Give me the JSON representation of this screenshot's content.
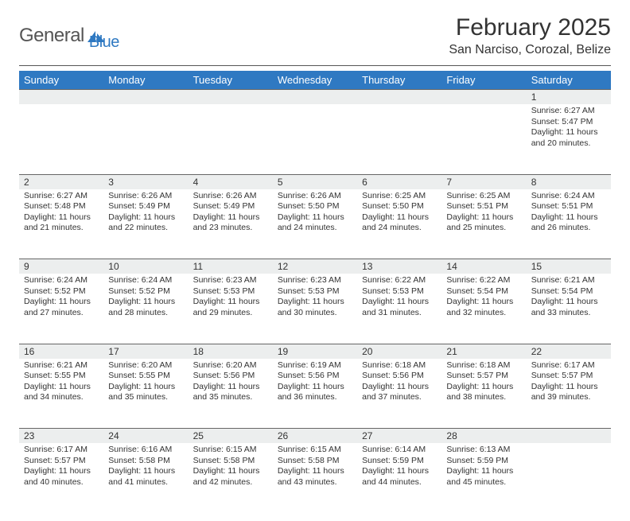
{
  "brand": {
    "text1": "General",
    "text2": "Blue"
  },
  "title": "February 2025",
  "location": "San Narciso, Corozal, Belize",
  "colors": {
    "header_bg": "#2f79c2",
    "header_fg": "#ffffff",
    "daynum_bg": "#eceeee",
    "rule": "#555555",
    "text": "#333333",
    "brand_blue": "#2f79c2",
    "brand_gray": "#555555",
    "background": "#ffffff",
    "cell_border": "#666666"
  },
  "typography": {
    "month_title_pt": 30,
    "location_pt": 16,
    "weekday_pt": 13,
    "daynum_pt": 12,
    "body_pt": 10.5
  },
  "weekdays": [
    "Sunday",
    "Monday",
    "Tuesday",
    "Wednesday",
    "Thursday",
    "Friday",
    "Saturday"
  ],
  "weeks": [
    [
      null,
      null,
      null,
      null,
      null,
      null,
      {
        "n": "1",
        "sunrise": "6:27 AM",
        "sunset": "5:47 PM",
        "dl_h": "11",
        "dl_m": "20"
      }
    ],
    [
      {
        "n": "2",
        "sunrise": "6:27 AM",
        "sunset": "5:48 PM",
        "dl_h": "11",
        "dl_m": "21"
      },
      {
        "n": "3",
        "sunrise": "6:26 AM",
        "sunset": "5:49 PM",
        "dl_h": "11",
        "dl_m": "22"
      },
      {
        "n": "4",
        "sunrise": "6:26 AM",
        "sunset": "5:49 PM",
        "dl_h": "11",
        "dl_m": "23"
      },
      {
        "n": "5",
        "sunrise": "6:26 AM",
        "sunset": "5:50 PM",
        "dl_h": "11",
        "dl_m": "24"
      },
      {
        "n": "6",
        "sunrise": "6:25 AM",
        "sunset": "5:50 PM",
        "dl_h": "11",
        "dl_m": "24"
      },
      {
        "n": "7",
        "sunrise": "6:25 AM",
        "sunset": "5:51 PM",
        "dl_h": "11",
        "dl_m": "25"
      },
      {
        "n": "8",
        "sunrise": "6:24 AM",
        "sunset": "5:51 PM",
        "dl_h": "11",
        "dl_m": "26"
      }
    ],
    [
      {
        "n": "9",
        "sunrise": "6:24 AM",
        "sunset": "5:52 PM",
        "dl_h": "11",
        "dl_m": "27"
      },
      {
        "n": "10",
        "sunrise": "6:24 AM",
        "sunset": "5:52 PM",
        "dl_h": "11",
        "dl_m": "28"
      },
      {
        "n": "11",
        "sunrise": "6:23 AM",
        "sunset": "5:53 PM",
        "dl_h": "11",
        "dl_m": "29"
      },
      {
        "n": "12",
        "sunrise": "6:23 AM",
        "sunset": "5:53 PM",
        "dl_h": "11",
        "dl_m": "30"
      },
      {
        "n": "13",
        "sunrise": "6:22 AM",
        "sunset": "5:53 PM",
        "dl_h": "11",
        "dl_m": "31"
      },
      {
        "n": "14",
        "sunrise": "6:22 AM",
        "sunset": "5:54 PM",
        "dl_h": "11",
        "dl_m": "32"
      },
      {
        "n": "15",
        "sunrise": "6:21 AM",
        "sunset": "5:54 PM",
        "dl_h": "11",
        "dl_m": "33"
      }
    ],
    [
      {
        "n": "16",
        "sunrise": "6:21 AM",
        "sunset": "5:55 PM",
        "dl_h": "11",
        "dl_m": "34"
      },
      {
        "n": "17",
        "sunrise": "6:20 AM",
        "sunset": "5:55 PM",
        "dl_h": "11",
        "dl_m": "35"
      },
      {
        "n": "18",
        "sunrise": "6:20 AM",
        "sunset": "5:56 PM",
        "dl_h": "11",
        "dl_m": "35"
      },
      {
        "n": "19",
        "sunrise": "6:19 AM",
        "sunset": "5:56 PM",
        "dl_h": "11",
        "dl_m": "36"
      },
      {
        "n": "20",
        "sunrise": "6:18 AM",
        "sunset": "5:56 PM",
        "dl_h": "11",
        "dl_m": "37"
      },
      {
        "n": "21",
        "sunrise": "6:18 AM",
        "sunset": "5:57 PM",
        "dl_h": "11",
        "dl_m": "38"
      },
      {
        "n": "22",
        "sunrise": "6:17 AM",
        "sunset": "5:57 PM",
        "dl_h": "11",
        "dl_m": "39"
      }
    ],
    [
      {
        "n": "23",
        "sunrise": "6:17 AM",
        "sunset": "5:57 PM",
        "dl_h": "11",
        "dl_m": "40"
      },
      {
        "n": "24",
        "sunrise": "6:16 AM",
        "sunset": "5:58 PM",
        "dl_h": "11",
        "dl_m": "41"
      },
      {
        "n": "25",
        "sunrise": "6:15 AM",
        "sunset": "5:58 PM",
        "dl_h": "11",
        "dl_m": "42"
      },
      {
        "n": "26",
        "sunrise": "6:15 AM",
        "sunset": "5:58 PM",
        "dl_h": "11",
        "dl_m": "43"
      },
      {
        "n": "27",
        "sunrise": "6:14 AM",
        "sunset": "5:59 PM",
        "dl_h": "11",
        "dl_m": "44"
      },
      {
        "n": "28",
        "sunrise": "6:13 AM",
        "sunset": "5:59 PM",
        "dl_h": "11",
        "dl_m": "45"
      },
      null
    ]
  ],
  "labels": {
    "sunrise": "Sunrise:",
    "sunset": "Sunset:",
    "daylight_prefix": "Daylight:",
    "hours_word": "hours",
    "and_word": "and",
    "minutes_word": "minutes."
  }
}
